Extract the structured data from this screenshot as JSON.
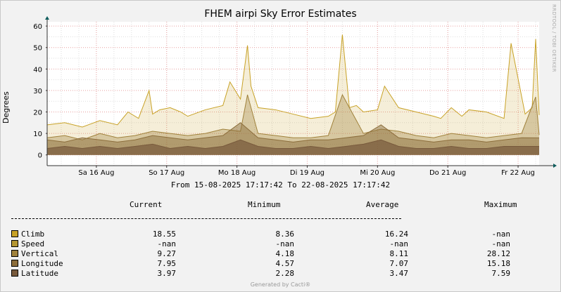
{
  "title": "FHEM airpi Sky Error Estimates",
  "watermark": "RRDTOOL / TOBI OETIKER",
  "footer": "Generated by Cacti®",
  "range_text": "From 15-08-2025 17:17:42 To 22-08-2025 17:17:42",
  "legend": {
    "headers": [
      "Current",
      "Minimum",
      "Average",
      "Maximum"
    ],
    "rows": [
      {
        "name": "Climb",
        "color": "#c8a227",
        "current": "18.55",
        "minimum": "8.36",
        "average": "16.24",
        "maximum": "-nan"
      },
      {
        "name": "Speed",
        "color": "#b49632",
        "current": "-nan",
        "minimum": "-nan",
        "average": "-nan",
        "maximum": "-nan"
      },
      {
        "name": "Vertical",
        "color": "#a0823c",
        "current": "9.27",
        "minimum": "4.18",
        "average": "8.11",
        "maximum": "28.12"
      },
      {
        "name": "Longitude",
        "color": "#8c6e3c",
        "current": "7.95",
        "minimum": "4.57",
        "average": "7.07",
        "maximum": "15.18"
      },
      {
        "name": "Latitude",
        "color": "#785a3c",
        "current": "3.97",
        "minimum": "2.28",
        "average": "3.47",
        "maximum": "7.59"
      }
    ]
  },
  "chart_data": {
    "type": "area",
    "title": "FHEM airpi Sky Error Estimates",
    "ylabel": "Degrees",
    "ylim": [
      -5,
      62
    ],
    "yticks": [
      0,
      10,
      20,
      30,
      40,
      50,
      60
    ],
    "xlim": [
      0,
      7
    ],
    "xticks": [
      {
        "pos": 0.7,
        "label": "Sa 16 Aug"
      },
      {
        "pos": 1.7,
        "label": "So 17 Aug"
      },
      {
        "pos": 2.7,
        "label": "Mo 18 Aug"
      },
      {
        "pos": 3.7,
        "label": "Di 19 Aug"
      },
      {
        "pos": 4.7,
        "label": "Mi 20 Aug"
      },
      {
        "pos": 5.7,
        "label": "Do 21 Aug"
      },
      {
        "pos": 6.7,
        "label": "Fr 22 Aug"
      }
    ],
    "grid": true,
    "series": [
      {
        "name": "Climb",
        "color": "#c8a227",
        "x": [
          0,
          0.25,
          0.5,
          0.75,
          1,
          1.15,
          1.3,
          1.45,
          1.5,
          1.6,
          1.75,
          1.9,
          2,
          2.25,
          2.5,
          2.6,
          2.75,
          2.85,
          2.9,
          3,
          3.25,
          3.5,
          3.75,
          4,
          4.1,
          4.2,
          4.3,
          4.4,
          4.5,
          4.7,
          4.8,
          5,
          5.25,
          5.5,
          5.6,
          5.75,
          5.9,
          6,
          6.25,
          6.5,
          6.6,
          6.8,
          6.9,
          6.95,
          7
        ],
        "values": [
          14,
          15,
          13,
          16,
          14,
          20,
          17,
          30,
          19,
          21,
          22,
          20,
          18,
          21,
          23,
          34,
          26,
          51,
          32,
          22,
          21,
          19,
          17,
          18,
          20,
          56,
          22,
          23,
          20,
          21,
          32,
          22,
          20,
          18,
          17,
          22,
          18,
          21,
          20,
          17,
          52,
          19,
          22,
          54,
          18.55
        ]
      },
      {
        "name": "Vertical",
        "color": "#a0823c",
        "x": [
          0,
          0.25,
          0.5,
          0.75,
          1,
          1.25,
          1.5,
          1.75,
          2,
          2.25,
          2.5,
          2.75,
          2.85,
          3,
          3.25,
          3.5,
          3.75,
          4,
          4.2,
          4.5,
          4.75,
          5,
          5.25,
          5.5,
          5.75,
          6,
          6.25,
          6.5,
          6.75,
          6.95,
          7
        ],
        "values": [
          8,
          9,
          7,
          10,
          8,
          9,
          11,
          10,
          9,
          10,
          12,
          11,
          28,
          10,
          9,
          8,
          8,
          9,
          28,
          10,
          12,
          11,
          9,
          8,
          10,
          9,
          8,
          9,
          10,
          27,
          9.27
        ]
      },
      {
        "name": "Longitude",
        "color": "#8c6e3c",
        "x": [
          0,
          0.25,
          0.5,
          0.75,
          1,
          1.25,
          1.5,
          1.75,
          2,
          2.25,
          2.5,
          2.75,
          3,
          3.25,
          3.5,
          3.75,
          4,
          4.25,
          4.5,
          4.75,
          5,
          5.25,
          5.5,
          5.75,
          6,
          6.25,
          6.5,
          6.75,
          7
        ],
        "values": [
          7,
          6,
          8,
          7,
          6,
          7,
          9,
          8,
          7,
          8,
          9,
          15,
          8,
          7,
          6,
          7,
          7,
          8,
          9,
          14,
          8,
          7,
          6,
          7,
          7,
          6,
          7,
          8,
          7.95
        ]
      },
      {
        "name": "Latitude",
        "color": "#785a3c",
        "x": [
          0,
          0.25,
          0.5,
          0.75,
          1,
          1.25,
          1.5,
          1.75,
          2,
          2.25,
          2.5,
          2.75,
          3,
          3.25,
          3.5,
          3.75,
          4,
          4.25,
          4.5,
          4.75,
          5,
          5.25,
          5.5,
          5.75,
          6,
          6.25,
          6.5,
          6.75,
          7
        ],
        "values": [
          3,
          4,
          3,
          4,
          3,
          4,
          5,
          3,
          4,
          3,
          4,
          7,
          4,
          3,
          3,
          4,
          3,
          4,
          5,
          7,
          4,
          3,
          3,
          4,
          3,
          3,
          4,
          4,
          3.97
        ]
      }
    ]
  }
}
